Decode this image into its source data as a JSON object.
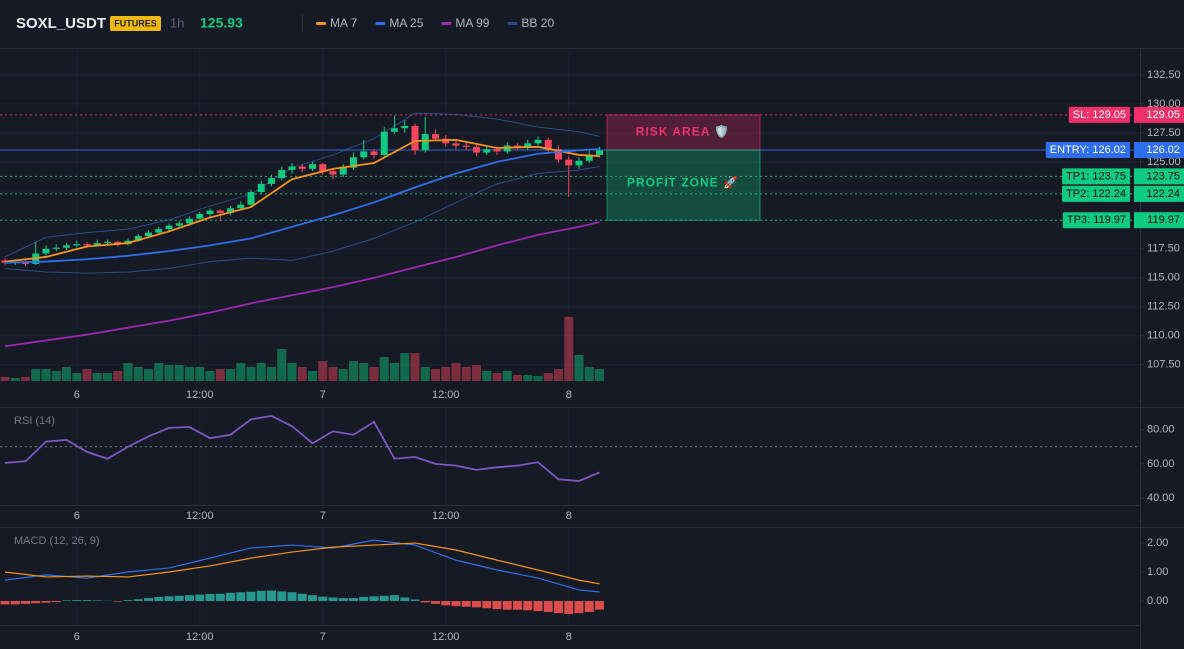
{
  "header": {
    "symbol": "SOXL_USDT",
    "badge": "FUTURES",
    "interval": "1h",
    "price": 125.93
  },
  "chart_data": [
    {
      "type": "candlestick",
      "ylim": [
        106.1,
        134.65
      ],
      "yticks": [
        {
          "value": 107.5,
          "label": "107.50"
        },
        {
          "value": 110,
          "label": "110.00"
        },
        {
          "value": 112.5,
          "label": "112.50"
        },
        {
          "value": 115,
          "label": "115.00"
        },
        {
          "value": 117.5,
          "label": "117.50"
        },
        {
          "value": 120,
          "label": "120.00"
        },
        {
          "value": 122.5,
          "label": "122.50"
        },
        {
          "value": 125,
          "label": "125.00"
        },
        {
          "value": 127.5,
          "label": "127.50"
        },
        {
          "value": 130,
          "label": "130.00"
        },
        {
          "value": 132.5,
          "label": "132.50"
        }
      ],
      "xticks": [
        {
          "value": 7,
          "label": "6"
        },
        {
          "value": 19,
          "label": "12:00"
        },
        {
          "value": 31,
          "label": "7"
        },
        {
          "value": 43,
          "label": "12:00"
        },
        {
          "value": 55,
          "label": "8"
        }
      ],
      "grid": true,
      "up_color": "#0ecb81",
      "down_color": "#f6465d",
      "candles": [
        [
          116.5,
          116.7,
          116.1,
          116.3
        ],
        [
          116.3,
          116.6,
          116.1,
          116.4
        ],
        [
          116.4,
          116.5,
          116.0,
          116.2
        ],
        [
          116.2,
          118.1,
          116.1,
          117.1
        ],
        [
          117.1,
          117.8,
          116.9,
          117.5
        ],
        [
          117.5,
          117.9,
          117.3,
          117.6
        ],
        [
          117.6,
          118.0,
          117.4,
          117.8
        ],
        [
          117.8,
          118.2,
          117.6,
          117.9
        ],
        [
          117.9,
          118.1,
          117.6,
          117.8
        ],
        [
          117.8,
          118.3,
          117.7,
          118.0
        ],
        [
          118.0,
          118.3,
          117.8,
          118.1
        ],
        [
          118.1,
          118.2,
          117.7,
          117.9
        ],
        [
          117.9,
          118.4,
          117.8,
          118.2
        ],
        [
          118.2,
          118.8,
          118.1,
          118.6
        ],
        [
          118.6,
          119.1,
          118.4,
          118.9
        ],
        [
          118.9,
          119.4,
          118.7,
          119.2
        ],
        [
          119.2,
          119.7,
          119.0,
          119.5
        ],
        [
          119.5,
          119.9,
          119.3,
          119.7
        ],
        [
          119.7,
          120.3,
          119.5,
          120.1
        ],
        [
          120.1,
          120.7,
          119.9,
          120.5
        ],
        [
          120.5,
          121.0,
          120.3,
          120.8
        ],
        [
          120.8,
          120.9,
          119.9,
          120.6
        ],
        [
          120.6,
          121.2,
          120.4,
          121.0
        ],
        [
          121.0,
          121.6,
          120.8,
          121.3
        ],
        [
          121.3,
          122.6,
          121.1,
          122.4
        ],
        [
          122.4,
          123.4,
          122.2,
          123.1
        ],
        [
          123.1,
          123.9,
          122.9,
          123.6
        ],
        [
          123.6,
          124.6,
          123.4,
          124.3
        ],
        [
          124.3,
          124.9,
          124.0,
          124.6
        ],
        [
          124.6,
          124.8,
          124.1,
          124.4
        ],
        [
          124.4,
          125.0,
          124.2,
          124.8
        ],
        [
          124.8,
          124.9,
          123.9,
          124.2
        ],
        [
          124.2,
          124.4,
          123.5,
          123.9
        ],
        [
          123.9,
          124.8,
          123.7,
          124.5
        ],
        [
          124.5,
          125.8,
          124.3,
          125.4
        ],
        [
          125.4,
          126.9,
          125.2,
          125.9
        ],
        [
          125.9,
          126.1,
          125.3,
          125.6
        ],
        [
          125.6,
          128.0,
          125.4,
          127.6
        ],
        [
          127.6,
          129.0,
          127.4,
          127.9
        ],
        [
          127.9,
          128.6,
          127.5,
          128.1
        ],
        [
          128.1,
          128.3,
          125.6,
          126.0
        ],
        [
          126.0,
          128.9,
          125.8,
          127.4
        ],
        [
          127.4,
          127.8,
          126.8,
          127.0
        ],
        [
          127.0,
          127.3,
          126.3,
          126.6
        ],
        [
          126.6,
          126.9,
          126.1,
          126.4
        ],
        [
          126.4,
          126.7,
          126.0,
          126.3
        ],
        [
          126.3,
          126.5,
          125.5,
          125.8
        ],
        [
          125.8,
          126.4,
          125.6,
          126.1
        ],
        [
          126.1,
          126.3,
          125.6,
          125.9
        ],
        [
          125.9,
          126.7,
          125.7,
          126.4
        ],
        [
          126.4,
          126.6,
          126.0,
          126.2
        ],
        [
          126.2,
          126.9,
          126.0,
          126.6
        ],
        [
          126.6,
          127.2,
          126.4,
          126.9
        ],
        [
          126.9,
          127.1,
          125.8,
          126.1
        ],
        [
          126.1,
          126.4,
          124.9,
          125.2
        ],
        [
          125.2,
          125.5,
          122.0,
          124.7
        ],
        [
          124.7,
          125.4,
          124.4,
          125.1
        ],
        [
          125.1,
          126.0,
          124.9,
          125.6
        ],
        [
          125.6,
          126.3,
          125.4,
          126.0
        ]
      ],
      "volumes": [
        4,
        3,
        4,
        12,
        12,
        10,
        14,
        8,
        12,
        8,
        8,
        10,
        18,
        14,
        12,
        18,
        16,
        16,
        14,
        14,
        10,
        12,
        12,
        18,
        14,
        18,
        14,
        32,
        18,
        14,
        10,
        20,
        14,
        12,
        20,
        18,
        14,
        24,
        18,
        28,
        28,
        14,
        12,
        14,
        18,
        14,
        16,
        10,
        8,
        10,
        6,
        6,
        5,
        8,
        12,
        64,
        26,
        14,
        12
      ],
      "line_x": [
        0,
        4,
        8,
        12,
        16,
        20,
        24,
        28,
        32,
        36,
        40,
        44,
        48,
        52,
        56,
        58
      ],
      "series": [
        {
          "name": "MA 7",
          "color": "#f7931a",
          "values": [
            116.4,
            116.8,
            117.7,
            118.0,
            119.0,
            120.2,
            121.1,
            123.5,
            124.4,
            124.9,
            126.8,
            126.9,
            126.2,
            126.3,
            125.6,
            125.5
          ]
        },
        {
          "name": "MA 25",
          "color": "#2f6fed",
          "values": [
            116.3,
            116.4,
            116.6,
            116.9,
            117.3,
            117.8,
            118.4,
            119.4,
            120.4,
            121.5,
            122.8,
            124.0,
            125.0,
            125.7,
            126.0,
            126.1
          ]
        },
        {
          "name": "MA 99",
          "color": "#9c27b0",
          "values": [
            109.1,
            109.6,
            110.1,
            110.7,
            111.3,
            112.0,
            112.8,
            113.5,
            114.2,
            115.0,
            115.9,
            116.8,
            117.8,
            118.7,
            119.4,
            119.8
          ]
        },
        {
          "name": "BB 20",
          "color": "#2a4a8a",
          "upper": [
            116.8,
            118.5,
            118.9,
            119.2,
            120.0,
            121.2,
            122.2,
            124.5,
            125.6,
            127.0,
            129.2,
            129.1,
            128.7,
            128.0,
            127.6,
            127.2
          ],
          "lower": [
            115.8,
            115.5,
            115.4,
            115.5,
            115.8,
            116.4,
            116.7,
            116.5,
            117.3,
            118.4,
            119.8,
            121.5,
            123.1,
            124.0,
            124.3,
            124.6
          ]
        }
      ],
      "levels": [
        {
          "label": "SL: 129.05",
          "value": 129.05,
          "color": "#f0306a",
          "line": "dotted"
        },
        {
          "label": "ENTRY: 126.02",
          "value": 126.02,
          "color": "#2f6fed",
          "line": "solid"
        },
        {
          "label": "TP1: 123.75",
          "value": 123.75,
          "color": "#0ecb81",
          "line": "dotted"
        },
        {
          "label": "TP2: 122.24",
          "value": 122.24,
          "color": "#0ecb81",
          "line": "dotted"
        },
        {
          "label": "TP3: 119.97",
          "value": 119.97,
          "color": "#0ecb81",
          "line": "dotted"
        }
      ],
      "zones": [
        {
          "label": "RISK AREA 🛡️",
          "from": 129.05,
          "to": 126.02,
          "color": "#f0306a"
        },
        {
          "label": "PROFIT ZONE 🚀",
          "from": 126.02,
          "to": 119.97,
          "color": "#0ecb81"
        }
      ]
    },
    {
      "type": "line",
      "title": "RSI (14)",
      "ylim": [
        36,
        92.6
      ],
      "yticks": [
        {
          "value": 40,
          "label": "40.00"
        },
        {
          "value": 60,
          "label": "60.00"
        },
        {
          "value": 80,
          "label": "80.00"
        }
      ],
      "xticks": [
        {
          "value": 7,
          "label": "6"
        },
        {
          "value": 19,
          "label": "12:00"
        },
        {
          "value": 31,
          "label": "7"
        },
        {
          "value": 43,
          "label": "12:00"
        },
        {
          "value": 55,
          "label": "8"
        }
      ],
      "guide": 70,
      "x": [
        0,
        2,
        4,
        6,
        8,
        10,
        12,
        14,
        16,
        18,
        20,
        22,
        24,
        26,
        28,
        30,
        32,
        34,
        36,
        38,
        40,
        42,
        44,
        46,
        48,
        50,
        52,
        54,
        56,
        58
      ],
      "series": [
        {
          "color": "#7e57c2",
          "values": [
            60.6,
            61.5,
            73,
            74,
            67,
            63,
            70,
            76,
            81,
            81.5,
            75,
            77,
            86,
            88,
            82,
            72,
            79,
            77,
            84.5,
            63,
            64,
            60,
            59,
            56.5,
            58,
            59,
            61,
            51,
            50,
            55
          ]
        }
      ]
    },
    {
      "type": "macd",
      "title": "MACD (12, 26, 9)",
      "ylim": [
        -0.83,
        2.52
      ],
      "yticks": [
        {
          "value": 0,
          "label": "0.00"
        },
        {
          "value": 1,
          "label": "1.00"
        },
        {
          "value": 2,
          "label": "2.00"
        }
      ],
      "xticks": [
        {
          "value": 7,
          "label": "6"
        },
        {
          "value": 19,
          "label": "12:00"
        },
        {
          "value": 31,
          "label": "7"
        },
        {
          "value": 43,
          "label": "12:00"
        },
        {
          "value": 55,
          "label": "8"
        }
      ],
      "x": [
        0,
        4,
        8,
        12,
        16,
        20,
        24,
        28,
        32,
        36,
        40,
        44,
        48,
        52,
        56,
        58
      ],
      "series": [
        {
          "color": "#2f6fed",
          "values": [
            0.72,
            0.9,
            0.79,
            1.0,
            1.14,
            1.48,
            1.83,
            1.93,
            1.83,
            2.1,
            1.93,
            1.41,
            1.07,
            0.79,
            0.38,
            0.31
          ]
        },
        {
          "color": "#f7931a",
          "values": [
            1.0,
            0.83,
            0.86,
            0.83,
            1.0,
            1.21,
            1.48,
            1.69,
            1.86,
            1.93,
            2.0,
            1.76,
            1.41,
            1.07,
            0.72,
            0.59
          ]
        }
      ],
      "histogram": [
        -0.12,
        -0.12,
        -0.1,
        -0.08,
        -0.06,
        -0.04,
        0.02,
        0.03,
        0.03,
        0.02,
        0.01,
        -0.02,
        0.03,
        0.06,
        0.1,
        0.14,
        0.16,
        0.18,
        0.2,
        0.22,
        0.24,
        0.25,
        0.28,
        0.3,
        0.32,
        0.35,
        0.36,
        0.33,
        0.3,
        0.25,
        0.2,
        0.15,
        0.12,
        0.1,
        0.1,
        0.14,
        0.16,
        0.18,
        0.2,
        0.12,
        0.05,
        -0.05,
        -0.1,
        -0.15,
        -0.18,
        -0.2,
        -0.22,
        -0.25,
        -0.28,
        -0.3,
        -0.3,
        -0.32,
        -0.35,
        -0.38,
        -0.42,
        -0.45,
        -0.42,
        -0.38,
        -0.3
      ],
      "hist_up": "#26a69a",
      "hist_down": "#ef5350"
    }
  ]
}
